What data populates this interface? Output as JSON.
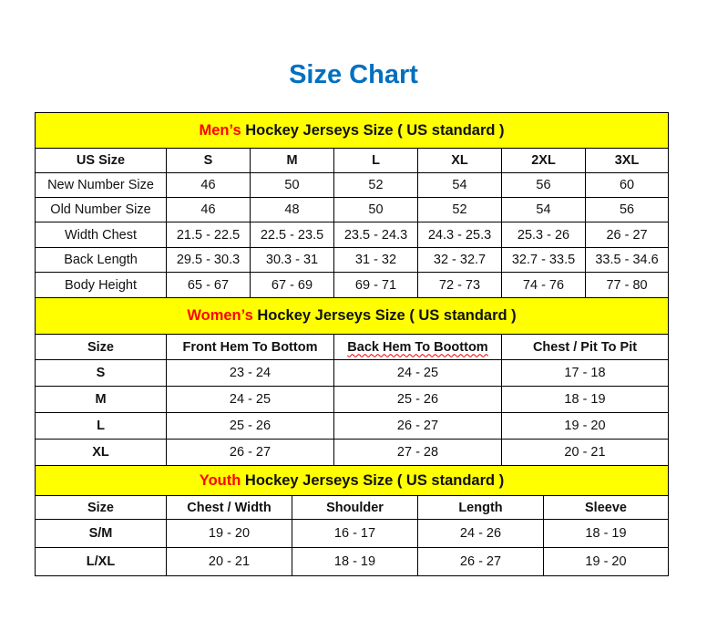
{
  "title": "Size Chart",
  "colors": {
    "title": "#0070C0",
    "header_bg": "#FFFF00",
    "highlight": "#FF0000"
  },
  "men": {
    "header_highlight": "Men’s",
    "header_rest": " Hockey Jerseys Size ( US standard )",
    "columns": [
      "US Size",
      "S",
      "M",
      "L",
      "XL",
      "2XL",
      "3XL"
    ],
    "rows": [
      [
        "New Number Size",
        "46",
        "50",
        "52",
        "54",
        "56",
        "60"
      ],
      [
        "Old Number Size",
        "46",
        "48",
        "50",
        "52",
        "54",
        "56"
      ],
      [
        "Width Chest",
        "21.5 - 22.5",
        "22.5 - 23.5",
        "23.5 - 24.3",
        "24.3 - 25.3",
        "25.3 - 26",
        "26 - 27"
      ],
      [
        "Back Length",
        "29.5 - 30.3",
        "30.3 - 31",
        "31 - 32",
        "32 - 32.7",
        "32.7 - 33.5",
        "33.5 - 34.6"
      ],
      [
        "Body Height",
        "65 - 67",
        "67 - 69",
        "69 - 71",
        "72 - 73",
        "74 - 76",
        "77 - 80"
      ]
    ]
  },
  "women": {
    "header_highlight": "Women’s",
    "header_rest": " Hockey Jerseys Size ( US standard )",
    "columns": [
      "Size",
      "Front Hem To Bottom",
      "Back Hem To Boottom",
      "Chest / Pit To Pit"
    ],
    "rows": [
      [
        "S",
        "23 - 24",
        "24 - 25",
        "17 - 18"
      ],
      [
        "M",
        "24 - 25",
        "25 - 26",
        "18 - 19"
      ],
      [
        "L",
        "25 - 26",
        "26 - 27",
        "19 - 20"
      ],
      [
        "XL",
        "26 - 27",
        "27 - 28",
        "20 - 21"
      ]
    ]
  },
  "youth": {
    "header_highlight": "Youth",
    "header_rest": " Hockey Jerseys Size ( US standard )",
    "columns": [
      "Size",
      "Chest / Width",
      "Shoulder",
      "Length",
      "Sleeve"
    ],
    "rows": [
      [
        "S/M",
        "19 - 20",
        "16 - 17",
        "24 - 26",
        "18 - 19"
      ],
      [
        "L/XL",
        "20 - 21",
        "18 - 19",
        "26 - 27",
        "19 - 20"
      ]
    ]
  }
}
